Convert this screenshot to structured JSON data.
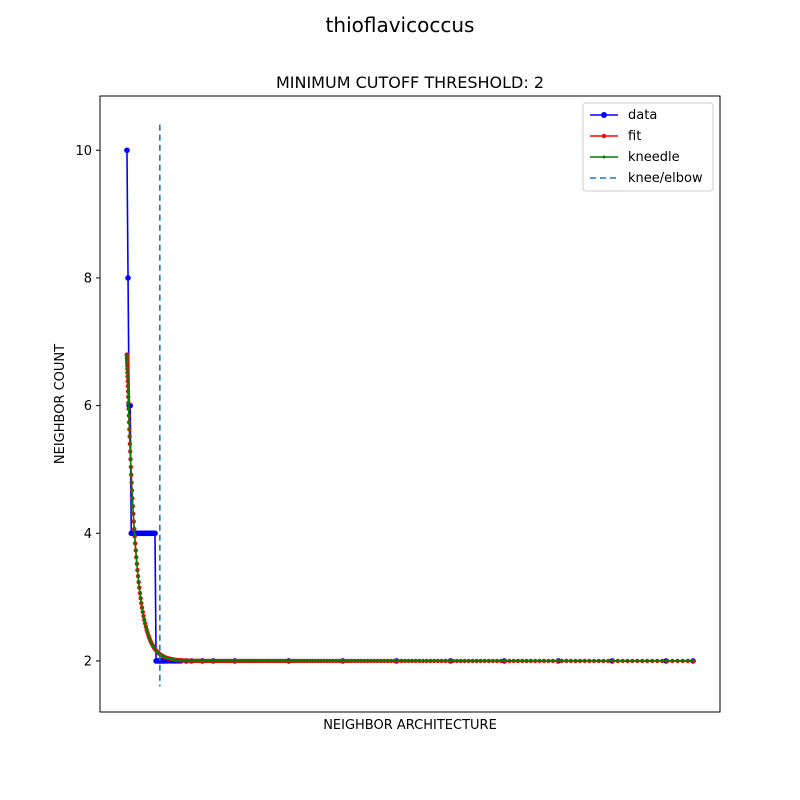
{
  "chart_data": {
    "type": "line",
    "suptitle": "thioflavicoccus",
    "title": "MINIMUM CUTOFF THRESHOLD: 2",
    "xlabel": "NEIGHBOR ARCHITECTURE",
    "ylabel": "NEIGHBOR COUNT",
    "xlim": [
      -5,
      110
    ],
    "ylim": [
      1.2,
      10.85
    ],
    "yticks": [
      2,
      4,
      6,
      8,
      10
    ],
    "x_ticks_visible": false,
    "grid": false,
    "legend_position": "top-right",
    "colors": {
      "data": "#0000ff",
      "fit": "#ff0000",
      "kneedle": "#008000",
      "knee": "#1f77b4"
    },
    "series": [
      {
        "name": "data",
        "x": [
          0,
          0.2,
          0.4,
          0.6,
          0.8,
          1,
          1.2,
          1.4,
          1.6,
          1.8,
          2,
          2.2,
          2.4,
          2.6,
          2.8,
          3,
          3.2,
          3.4,
          3.6,
          3.8,
          4,
          4.2,
          4.4,
          4.6,
          4.8,
          5,
          5.2,
          5.4,
          5.6,
          5.8,
          6,
          6.2,
          6.4,
          6.6,
          6.8,
          7,
          7.5,
          8,
          8.5,
          9,
          9.5,
          10,
          11,
          12,
          14,
          16,
          20,
          30,
          40,
          50,
          60,
          70,
          80,
          90,
          100,
          105
        ],
        "values": [
          10,
          8,
          6,
          6,
          4,
          4,
          4,
          4,
          4,
          4,
          4,
          4,
          4,
          4,
          4,
          4,
          4,
          4,
          4,
          4,
          4,
          4,
          4,
          4,
          4,
          4,
          4,
          2,
          2,
          2,
          2,
          2,
          2,
          2,
          2,
          2,
          2,
          2,
          2,
          2,
          2,
          2,
          2,
          2,
          2,
          2,
          2,
          2,
          2,
          2,
          2,
          2,
          2,
          2,
          2,
          2
        ]
      },
      {
        "name": "fit",
        "model": "2 + 4.8*exp(-x/1.6)",
        "x_range": [
          0,
          105
        ],
        "points": 240
      },
      {
        "name": "kneedle",
        "model": "2 + 4.8*exp(-x/1.6)",
        "x_range": [
          0,
          105
        ],
        "points": 240
      },
      {
        "name": "knee/elbow",
        "x": 6.1
      }
    ]
  }
}
